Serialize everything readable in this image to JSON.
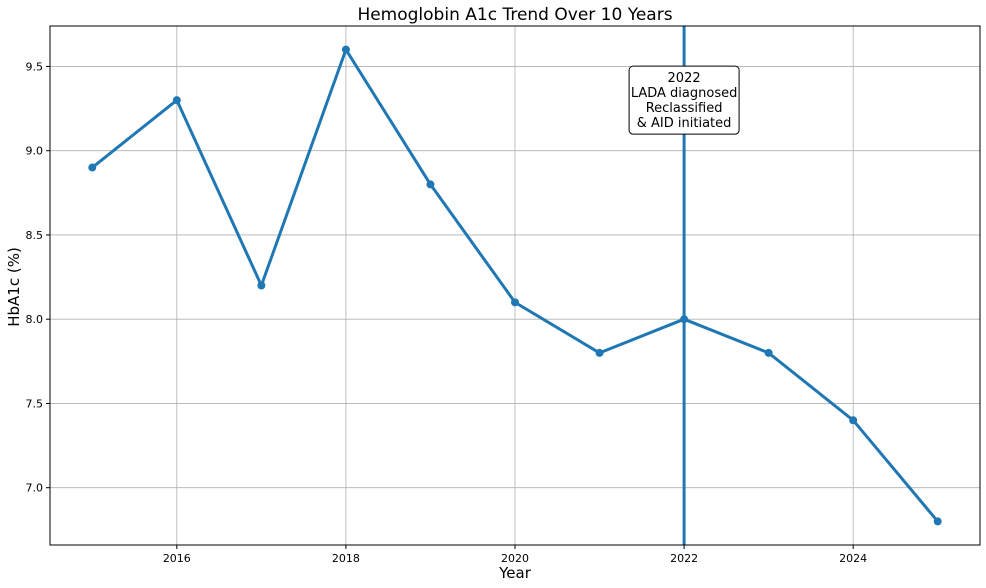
{
  "chart_data": {
    "type": "line",
    "title": "Hemoglobin A1c Trend Over 10 Years",
    "xlabel": "Year",
    "ylabel": "HbA1c (%)",
    "x": [
      2015,
      2016,
      2017,
      2018,
      2019,
      2020,
      2021,
      2022,
      2023,
      2024,
      2025
    ],
    "series": [
      {
        "values": [
          8.9,
          9.3,
          8.2,
          9.6,
          8.8,
          8.1,
          7.8,
          8.0,
          7.8,
          7.4,
          6.8
        ],
        "color": "#1f77b4",
        "marker": "circle"
      }
    ],
    "xlim": [
      2014.5,
      2025.5
    ],
    "ylim": [
      6.66,
      9.74
    ],
    "xticks": [
      2016,
      2018,
      2020,
      2022,
      2024
    ],
    "xtick_labels": [
      "2016",
      "2018",
      "2020",
      "2022",
      "2024"
    ],
    "yticks": [
      7.0,
      7.5,
      8.0,
      8.5,
      9.0,
      9.5
    ],
    "ytick_labels": [
      "7.0",
      "7.5",
      "8.0",
      "8.5",
      "9.0",
      "9.5"
    ],
    "grid": true,
    "vline": {
      "x": 2022,
      "color": "#1f77b4"
    },
    "annotation": {
      "x": 2022,
      "y": 9.3,
      "lines": [
        "2022",
        "LADA diagnosed",
        "Reclassified",
        "& AID initiated"
      ]
    }
  }
}
